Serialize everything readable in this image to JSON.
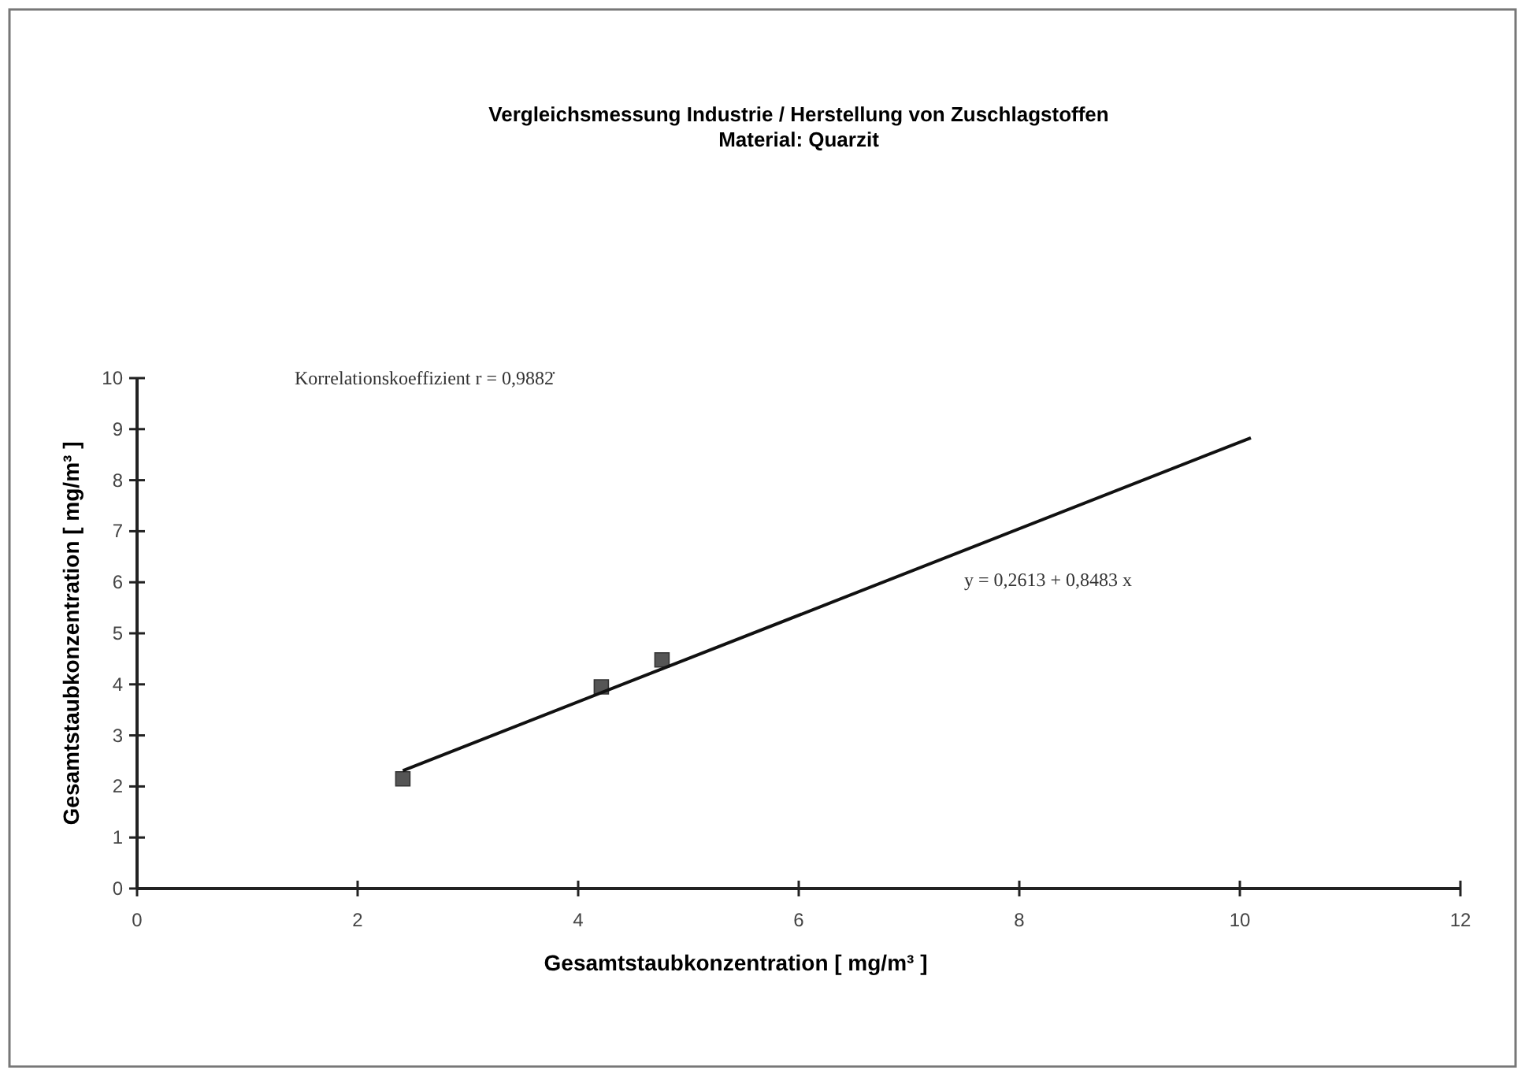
{
  "chart_data": {
    "type": "scatter",
    "title": "Vergleichsmessung Industrie / Herstellung von Zuschlagstoffen",
    "subtitle": "Material: Quarzit",
    "xlabel": "Gesamtstaubkonzentration [ mg/m³ ]",
    "ylabel": "Gesamtstaubkonzentration [ mg/m³ ]",
    "xlim": [
      0,
      12
    ],
    "xticks": [
      0,
      2,
      4,
      6,
      8,
      10,
      12
    ],
    "ylim": [
      0,
      10
    ],
    "yticks": [
      0,
      1,
      2,
      3,
      4,
      5,
      6,
      7,
      8,
      9,
      10
    ],
    "grid": false,
    "series": [
      {
        "color": "#555555",
        "marker": "square",
        "x": [
          2.41,
          4.21,
          4.76
        ],
        "values": [
          2.15,
          3.95,
          4.48
        ]
      },
      {
        "type": "line",
        "color": "#111111",
        "marker": "none",
        "line_style": "solid",
        "x": [
          2.41,
          10.1
        ],
        "values": [
          2.31,
          8.83
        ]
      }
    ],
    "annotations": [
      "Korrelationskoeffizient r = 0,9882̇",
      "y = 0,2613 + 0,8483 x"
    ]
  }
}
